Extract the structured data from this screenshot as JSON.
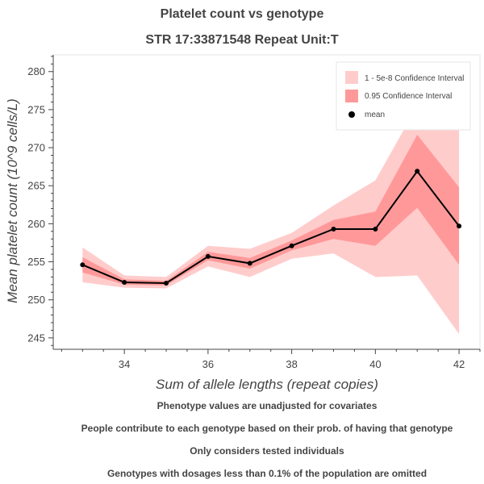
{
  "chart_data": {
    "type": "line",
    "title": "Platelet count vs genotype",
    "subtitle": "STR 17:33871548 Repeat Unit:T",
    "xlabel": "Sum of allele lengths (repeat copies)",
    "ylabel": "Mean platelet count (10^9 cells/L)",
    "xlim": [
      32.3,
      42.5
    ],
    "ylim": [
      243.5,
      282.2
    ],
    "xticks": [
      34,
      36,
      38,
      40,
      42
    ],
    "yticks": [
      245,
      250,
      255,
      260,
      265,
      270,
      275,
      280
    ],
    "grid": false,
    "legend_position": "top-right",
    "x": [
      33,
      34,
      35,
      36,
      37,
      38,
      39,
      40,
      41,
      42
    ],
    "series": [
      {
        "name": "mean",
        "values": [
          254.6,
          252.3,
          252.2,
          255.7,
          254.8,
          257.1,
          259.3,
          259.3,
          266.9,
          259.7
        ],
        "color": "#000000"
      }
    ],
    "bands": [
      {
        "name": "1 - 5e-8 Confidence Interval",
        "lower": [
          252.3,
          251.6,
          251.5,
          254.4,
          253.0,
          255.4,
          256.1,
          253.0,
          253.2,
          245.5
        ],
        "upper": [
          256.9,
          253.2,
          253.0,
          257.1,
          256.7,
          258.8,
          262.4,
          265.7,
          275.5,
          275.5
        ],
        "color": "#ffcccc"
      },
      {
        "name": "0.95 Confidence Interval",
        "lower": [
          253.6,
          252.0,
          251.9,
          255.2,
          254.1,
          256.5,
          258.0,
          257.1,
          262.1,
          254.6
        ],
        "upper": [
          255.6,
          252.7,
          252.5,
          256.3,
          255.5,
          257.8,
          260.5,
          261.6,
          271.7,
          264.8
        ],
        "color": "#ff9999"
      }
    ],
    "notes": [
      "Phenotype values are unadjusted for covariates",
      "People contribute to each genotype based on their prob. of having that genotype",
      "Only considers tested individuals",
      "Genotypes with dosages less than 0.1% of the population are omitted"
    ]
  }
}
